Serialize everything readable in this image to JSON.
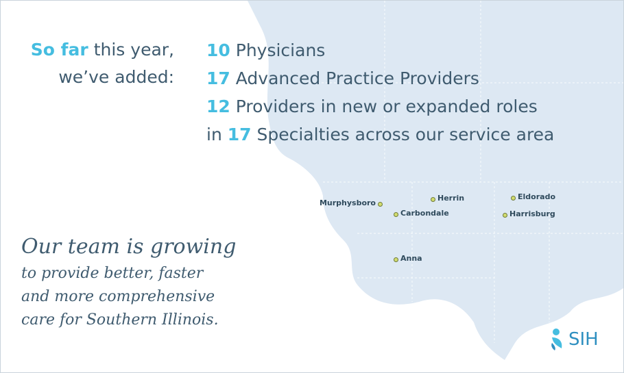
{
  "intro": {
    "highlight": "So far",
    "rest": " this year,",
    "line2": "we’ve added:"
  },
  "stats": [
    {
      "number": "10",
      "text": " Physicians"
    },
    {
      "number": "17",
      "text": " Advanced Practice Providers"
    },
    {
      "number": "12",
      "text": " Providers in new or expanded roles"
    },
    {
      "prefix": "in ",
      "number": "17",
      "text": " Specialties across our service area"
    }
  ],
  "cities": [
    "Murphysboro",
    "Herrin",
    "Eldorado",
    "Carbondale",
    "Harrisburg",
    "Anna"
  ],
  "tagline": {
    "headline": "Our team is growing",
    "lines": [
      "to provide better, faster",
      "and more comprehensive",
      "care for Southern Illinois."
    ]
  },
  "logo": "SIH"
}
